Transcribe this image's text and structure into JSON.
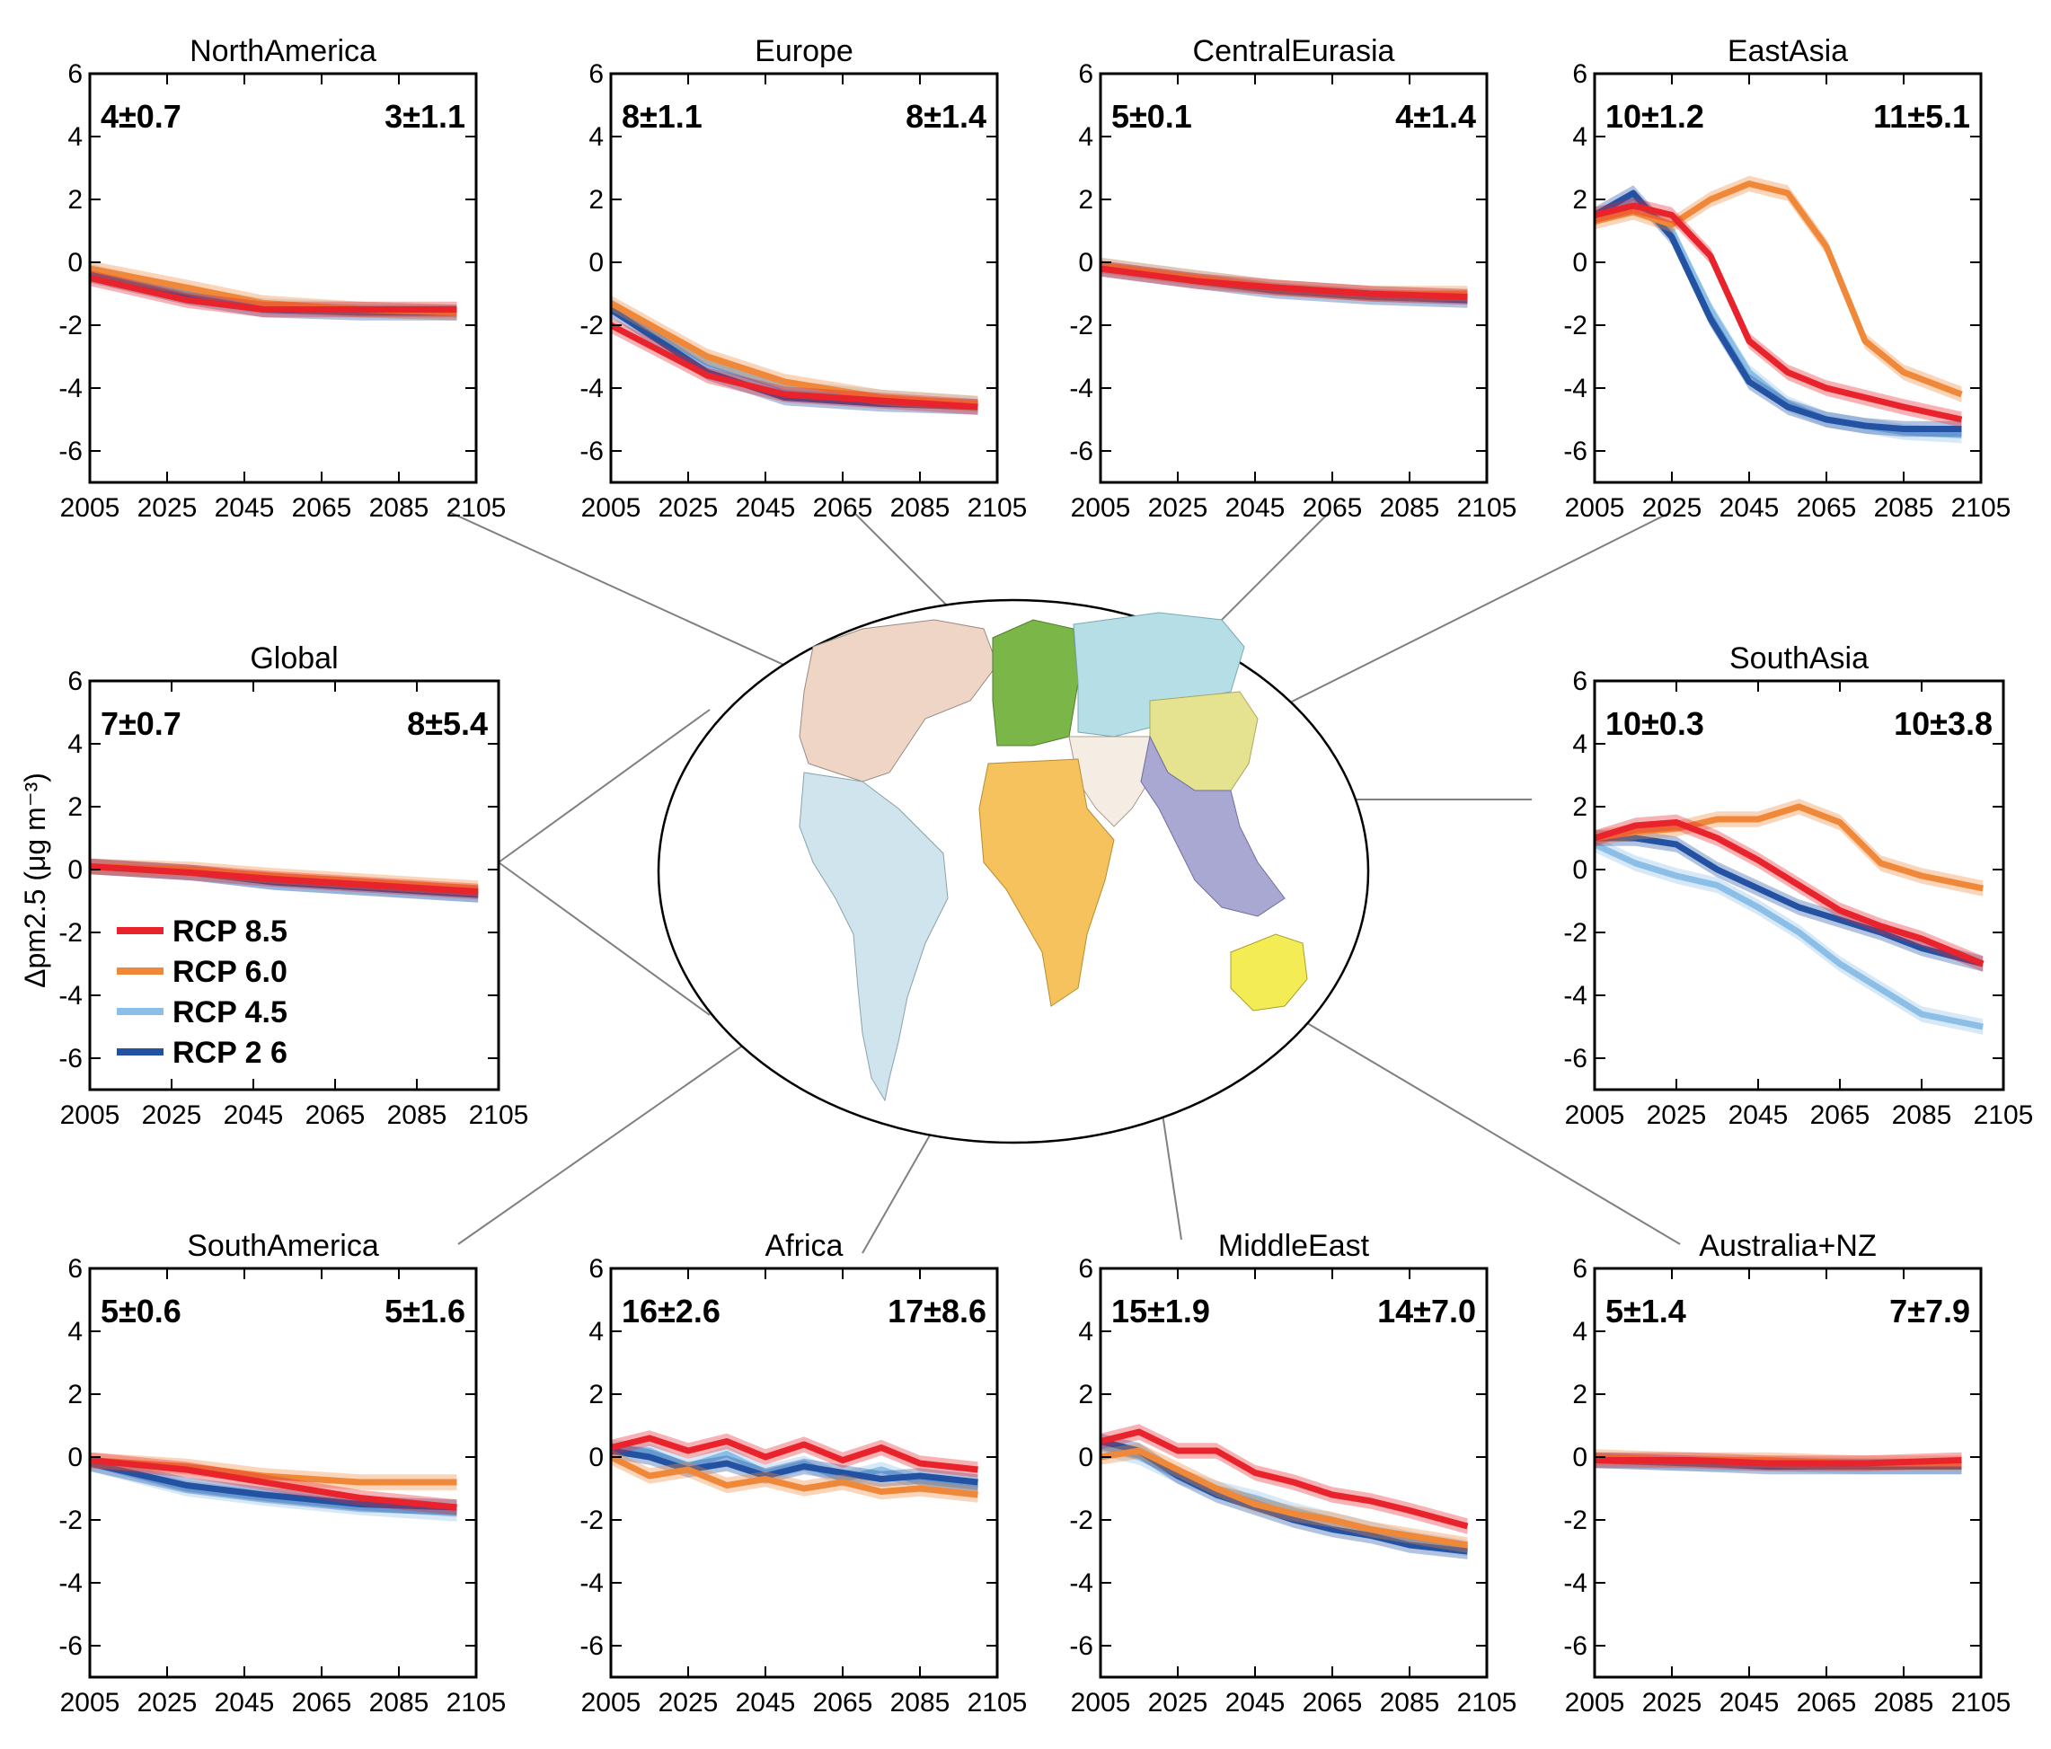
{
  "figure": {
    "ylabel": "Δpm2.5 (μg m⁻³)",
    "legend": {
      "placement": "global-panel-bottom-left",
      "entries": [
        {
          "label": "RCP 8.5",
          "color": "#e8232b"
        },
        {
          "label": "RCP 6.0",
          "color": "#f0883a"
        },
        {
          "label": "RCP 4.5",
          "color": "#8cbfe8"
        },
        {
          "label": "RCP 2 6",
          "color": "#2352a3"
        }
      ]
    }
  },
  "chart_data": [
    {
      "type": "line",
      "title": "NorthAmerica",
      "stat_left": "4±0.7",
      "stat_right": "3±1.1",
      "xlim": [
        2005,
        2105
      ],
      "ylim": [
        -7,
        6
      ],
      "x_ticks": [
        "2005",
        "2025",
        "2045",
        "2065",
        "2085",
        "2105"
      ],
      "y_ticks": [
        "6",
        "4",
        "2",
        "0",
        "-2",
        "-4",
        "-6"
      ],
      "x": [
        2005,
        2030,
        2050,
        2075,
        2100
      ],
      "series": [
        {
          "name": "RCP 8.5",
          "values": [
            -0.5,
            -1.2,
            -1.5,
            -1.5,
            -1.5
          ]
        },
        {
          "name": "RCP 6.0",
          "values": [
            -0.2,
            -0.8,
            -1.3,
            -1.5,
            -1.6
          ]
        },
        {
          "name": "RCP 4.5",
          "values": [
            -0.3,
            -1.0,
            -1.4,
            -1.5,
            -1.6
          ]
        },
        {
          "name": "RCP 2 6",
          "values": [
            -0.4,
            -1.1,
            -1.5,
            -1.6,
            -1.6
          ]
        }
      ]
    },
    {
      "type": "line",
      "title": "Europe",
      "stat_left": "8±1.1",
      "stat_right": "8±1.4",
      "xlim": [
        2005,
        2105
      ],
      "ylim": [
        -7,
        6
      ],
      "x_ticks": [
        "2005",
        "2025",
        "2045",
        "2065",
        "2085",
        "2105"
      ],
      "y_ticks": [
        "6",
        "4",
        "2",
        "0",
        "-2",
        "-4",
        "-6"
      ],
      "x": [
        2005,
        2030,
        2050,
        2075,
        2100
      ],
      "series": [
        {
          "name": "RCP 8.5",
          "values": [
            -2.0,
            -3.6,
            -4.2,
            -4.4,
            -4.6
          ]
        },
        {
          "name": "RCP 6.0",
          "values": [
            -1.3,
            -3.0,
            -3.8,
            -4.3,
            -4.5
          ]
        },
        {
          "name": "RCP 4.5",
          "values": [
            -1.4,
            -3.2,
            -4.0,
            -4.3,
            -4.5
          ]
        },
        {
          "name": "RCP 2 6",
          "values": [
            -1.5,
            -3.5,
            -4.3,
            -4.5,
            -4.6
          ]
        }
      ]
    },
    {
      "type": "line",
      "title": "CentralEurasia",
      "stat_left": "5±0.1",
      "stat_right": "4±1.4",
      "xlim": [
        2005,
        2105
      ],
      "ylim": [
        -7,
        6
      ],
      "x_ticks": [
        "2005",
        "2025",
        "2045",
        "2065",
        "2085",
        "2105"
      ],
      "y_ticks": [
        "6",
        "4",
        "2",
        "0",
        "-2",
        "-4",
        "-6"
      ],
      "x": [
        2005,
        2030,
        2050,
        2075,
        2100
      ],
      "series": [
        {
          "name": "RCP 8.5",
          "values": [
            -0.2,
            -0.6,
            -0.8,
            -1.0,
            -1.1
          ]
        },
        {
          "name": "RCP 6.0",
          "values": [
            -0.1,
            -0.5,
            -0.8,
            -1.0,
            -1.0
          ]
        },
        {
          "name": "RCP 4.5",
          "values": [
            -0.1,
            -0.5,
            -0.8,
            -1.0,
            -1.1
          ]
        },
        {
          "name": "RCP 2 6",
          "values": [
            -0.2,
            -0.6,
            -0.9,
            -1.1,
            -1.2
          ]
        }
      ]
    },
    {
      "type": "line",
      "title": "EastAsia",
      "stat_left": "10±1.2",
      "stat_right": "11±5.1",
      "xlim": [
        2005,
        2105
      ],
      "ylim": [
        -7,
        6
      ],
      "x_ticks": [
        "2005",
        "2025",
        "2045",
        "2065",
        "2085",
        "2105"
      ],
      "y_ticks": [
        "6",
        "4",
        "2",
        "0",
        "-2",
        "-4",
        "-6"
      ],
      "x": [
        2005,
        2015,
        2025,
        2035,
        2045,
        2055,
        2065,
        2075,
        2085,
        2100
      ],
      "series": [
        {
          "name": "RCP 8.5",
          "values": [
            1.5,
            1.8,
            1.5,
            0.2,
            -2.5,
            -3.5,
            -4.0,
            -4.3,
            -4.6,
            -5.0
          ]
        },
        {
          "name": "RCP 6.0",
          "values": [
            1.3,
            1.6,
            1.2,
            2.0,
            2.5,
            2.2,
            0.5,
            -2.5,
            -3.5,
            -4.2
          ]
        },
        {
          "name": "RCP 4.5",
          "values": [
            1.4,
            2.0,
            1.0,
            -1.5,
            -3.5,
            -4.5,
            -5.0,
            -5.2,
            -5.4,
            -5.5
          ]
        },
        {
          "name": "RCP 2 6",
          "values": [
            1.5,
            2.2,
            0.8,
            -1.8,
            -3.8,
            -4.6,
            -5.0,
            -5.2,
            -5.3,
            -5.3
          ]
        }
      ]
    },
    {
      "type": "line",
      "title": "Global",
      "stat_left": "7±0.7",
      "stat_right": "8±5.4",
      "xlim": [
        2005,
        2105
      ],
      "ylim": [
        -7,
        6
      ],
      "x_ticks": [
        "2005",
        "2025",
        "2045",
        "2065",
        "2085",
        "2105"
      ],
      "y_ticks": [
        "6",
        "4",
        "2",
        "0",
        "-2",
        "-4",
        "-6"
      ],
      "x": [
        2005,
        2030,
        2050,
        2075,
        2100
      ],
      "series": [
        {
          "name": "RCP 8.5",
          "values": [
            0.1,
            -0.1,
            -0.3,
            -0.5,
            -0.7
          ]
        },
        {
          "name": "RCP 6.0",
          "values": [
            0.1,
            0.0,
            -0.2,
            -0.4,
            -0.6
          ]
        },
        {
          "name": "RCP 4.5",
          "values": [
            0.1,
            -0.1,
            -0.4,
            -0.6,
            -0.8
          ]
        },
        {
          "name": "RCP 2 6",
          "values": [
            0.1,
            -0.1,
            -0.4,
            -0.6,
            -0.8
          ]
        }
      ]
    },
    {
      "type": "line",
      "title": "SouthAsia",
      "stat_left": "10±0.3",
      "stat_right": "10±3.8",
      "xlim": [
        2005,
        2105
      ],
      "ylim": [
        -7,
        6
      ],
      "x_ticks": [
        "2005",
        "2025",
        "2045",
        "2065",
        "2085",
        "2105"
      ],
      "y_ticks": [
        "6",
        "4",
        "2",
        "0",
        "-2",
        "-4",
        "-6"
      ],
      "x": [
        2005,
        2015,
        2025,
        2035,
        2045,
        2055,
        2065,
        2075,
        2085,
        2100
      ],
      "series": [
        {
          "name": "RCP 8.5",
          "values": [
            1.0,
            1.4,
            1.5,
            1.0,
            0.3,
            -0.5,
            -1.3,
            -1.8,
            -2.2,
            -3.0
          ]
        },
        {
          "name": "RCP 6.0",
          "values": [
            1.0,
            1.2,
            1.3,
            1.6,
            1.6,
            2.0,
            1.5,
            0.2,
            -0.2,
            -0.6
          ]
        },
        {
          "name": "RCP 4.5",
          "values": [
            0.8,
            0.2,
            -0.2,
            -0.5,
            -1.2,
            -2.0,
            -3.0,
            -3.8,
            -4.6,
            -5.0
          ]
        },
        {
          "name": "RCP 2 6",
          "values": [
            1.0,
            1.0,
            0.8,
            0.0,
            -0.6,
            -1.2,
            -1.6,
            -2.0,
            -2.5,
            -3.0
          ]
        }
      ]
    },
    {
      "type": "line",
      "title": "SouthAmerica",
      "stat_left": "5±0.6",
      "stat_right": "5±1.6",
      "xlim": [
        2005,
        2105
      ],
      "ylim": [
        -7,
        6
      ],
      "x_ticks": [
        "2005",
        "2025",
        "2045",
        "2065",
        "2085",
        "2105"
      ],
      "y_ticks": [
        "6",
        "4",
        "2",
        "0",
        "-2",
        "-4",
        "-6"
      ],
      "x": [
        2005,
        2030,
        2050,
        2075,
        2100
      ],
      "series": [
        {
          "name": "RCP 8.5",
          "values": [
            -0.1,
            -0.4,
            -0.8,
            -1.3,
            -1.6
          ]
        },
        {
          "name": "RCP 6.0",
          "values": [
            -0.1,
            -0.3,
            -0.6,
            -0.8,
            -0.8
          ]
        },
        {
          "name": "RCP 4.5",
          "values": [
            -0.2,
            -1.0,
            -1.3,
            -1.6,
            -1.8
          ]
        },
        {
          "name": "RCP 2 6",
          "values": [
            -0.2,
            -0.9,
            -1.2,
            -1.5,
            -1.6
          ]
        }
      ]
    },
    {
      "type": "line",
      "title": "Africa",
      "stat_left": "16±2.6",
      "stat_right": "17±8.6",
      "xlim": [
        2005,
        2105
      ],
      "ylim": [
        -7,
        6
      ],
      "x_ticks": [
        "2005",
        "2025",
        "2045",
        "2065",
        "2085",
        "2105"
      ],
      "y_ticks": [
        "6",
        "4",
        "2",
        "0",
        "-2",
        "-4",
        "-6"
      ],
      "x": [
        2005,
        2015,
        2025,
        2035,
        2045,
        2055,
        2065,
        2075,
        2085,
        2100
      ],
      "series": [
        {
          "name": "RCP 8.5",
          "values": [
            0.3,
            0.6,
            0.2,
            0.5,
            0.0,
            0.4,
            -0.1,
            0.3,
            -0.2,
            -0.4
          ]
        },
        {
          "name": "RCP 6.0",
          "values": [
            0.0,
            -0.6,
            -0.4,
            -0.9,
            -0.7,
            -1.0,
            -0.8,
            -1.1,
            -1.0,
            -1.2
          ]
        },
        {
          "name": "RCP 4.5",
          "values": [
            0.3,
            0.2,
            -0.3,
            0.1,
            -0.5,
            -0.2,
            -0.7,
            -0.4,
            -0.8,
            -1.0
          ]
        },
        {
          "name": "RCP 2 6",
          "values": [
            0.2,
            0.0,
            -0.4,
            -0.2,
            -0.6,
            -0.3,
            -0.5,
            -0.7,
            -0.6,
            -0.8
          ]
        }
      ]
    },
    {
      "type": "line",
      "title": "MiddleEast",
      "stat_left": "15±1.9",
      "stat_right": "14±7.0",
      "xlim": [
        2005,
        2105
      ],
      "ylim": [
        -7,
        6
      ],
      "x_ticks": [
        "2005",
        "2025",
        "2045",
        "2065",
        "2085",
        "2105"
      ],
      "y_ticks": [
        "6",
        "4",
        "2",
        "0",
        "-2",
        "-4",
        "-6"
      ],
      "x": [
        2005,
        2015,
        2025,
        2035,
        2045,
        2055,
        2065,
        2075,
        2085,
        2100
      ],
      "series": [
        {
          "name": "RCP 8.5",
          "values": [
            0.5,
            0.8,
            0.2,
            0.2,
            -0.5,
            -0.8,
            -1.2,
            -1.4,
            -1.7,
            -2.2
          ]
        },
        {
          "name": "RCP 6.0",
          "values": [
            0.0,
            0.2,
            -0.4,
            -1.0,
            -1.5,
            -1.8,
            -2.0,
            -2.3,
            -2.5,
            -2.8
          ]
        },
        {
          "name": "RCP 4.5",
          "values": [
            0.3,
            0.0,
            -0.6,
            -1.0,
            -1.3,
            -1.7,
            -2.0,
            -2.3,
            -2.6,
            -2.9
          ]
        },
        {
          "name": "RCP 2 6",
          "values": [
            0.5,
            0.2,
            -0.6,
            -1.2,
            -1.6,
            -2.0,
            -2.3,
            -2.5,
            -2.8,
            -3.0
          ]
        }
      ]
    },
    {
      "type": "line",
      "title": "Australia+NZ",
      "stat_left": "5±1.4",
      "stat_right": "7±7.9",
      "xlim": [
        2005,
        2105
      ],
      "ylim": [
        -7,
        6
      ],
      "x_ticks": [
        "2005",
        "2025",
        "2045",
        "2065",
        "2085",
        "2105"
      ],
      "y_ticks": [
        "6",
        "4",
        "2",
        "0",
        "-2",
        "-4",
        "-6"
      ],
      "x": [
        2005,
        2030,
        2050,
        2075,
        2100
      ],
      "series": [
        {
          "name": "RCP 8.5",
          "values": [
            -0.1,
            -0.1,
            -0.2,
            -0.2,
            -0.1
          ]
        },
        {
          "name": "RCP 6.0",
          "values": [
            0.0,
            -0.1,
            -0.1,
            -0.2,
            -0.2
          ]
        },
        {
          "name": "RCP 4.5",
          "values": [
            -0.1,
            -0.2,
            -0.2,
            -0.3,
            -0.3
          ]
        },
        {
          "name": "RCP 2 6",
          "values": [
            -0.1,
            -0.2,
            -0.3,
            -0.3,
            -0.3
          ]
        }
      ]
    }
  ]
}
